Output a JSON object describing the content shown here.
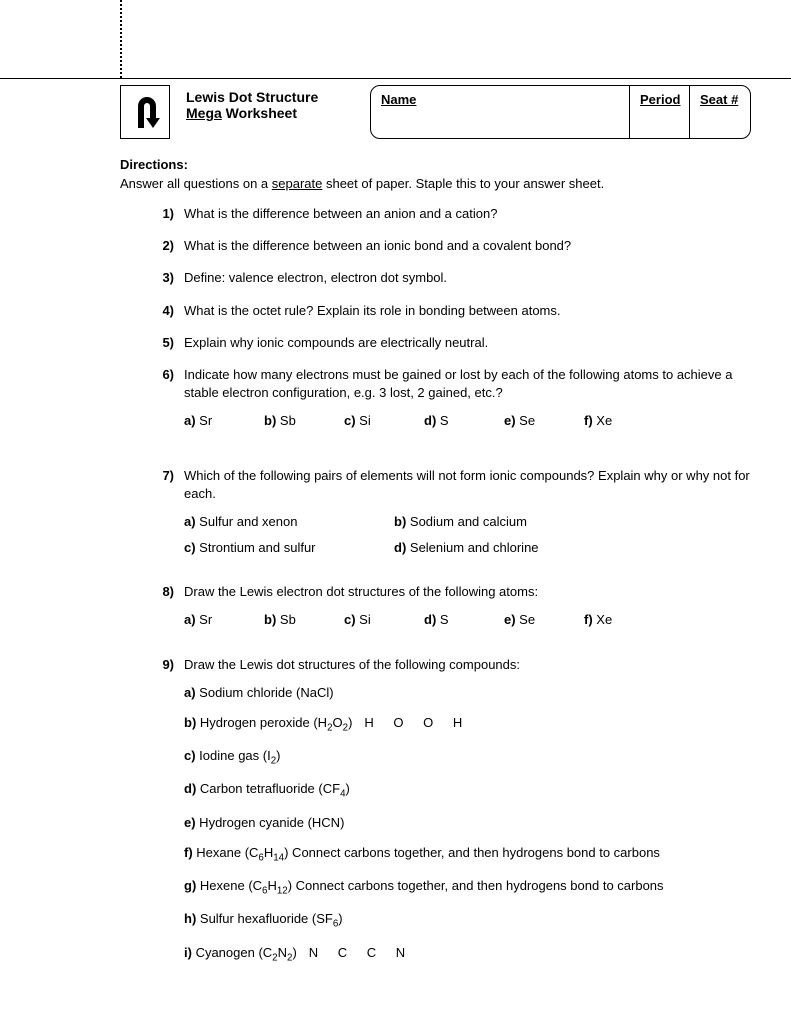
{
  "header": {
    "title_line1": "Lewis Dot Structure",
    "title_mega": "Mega",
    "title_line2_suffix": " Worksheet",
    "name_label": "Name",
    "period_label": "Period",
    "seat_label": "Seat #"
  },
  "directions": {
    "label": "Directions:",
    "text_before": "Answer all questions on a ",
    "text_underline": "separate",
    "text_after": " sheet of paper. Staple this to your answer sheet."
  },
  "questions": [
    {
      "n": "1)",
      "text": "What is the difference between an anion and a cation?"
    },
    {
      "n": "2)",
      "text": "What is the difference between an ionic bond and a covalent bond?"
    },
    {
      "n": "3)",
      "text": "Define: valence electron, electron dot symbol."
    },
    {
      "n": "4)",
      "text": "What is the octet rule? Explain its role in bonding between atoms."
    },
    {
      "n": "5)",
      "text": "Explain why ionic compounds are electrically neutral."
    },
    {
      "n": "6)",
      "text": "Indicate how many electrons must be gained or lost by each of the following atoms to achieve a stable electron configuration, e.g. 3 lost, 2 gained, etc.?",
      "subs_inline": [
        {
          "l": "a)",
          "t": " Sr"
        },
        {
          "l": "b)",
          "t": " Sb"
        },
        {
          "l": "c)",
          "t": " Si"
        },
        {
          "l": "d)",
          "t": " S"
        },
        {
          "l": "e)",
          "t": " Se"
        },
        {
          "l": "f)",
          "t": " Xe"
        }
      ]
    },
    {
      "n": "7)",
      "text": "Which of the following pairs of elements will not form ionic compounds? Explain why or why not for each.",
      "subs_grid": [
        {
          "l": "a)",
          "t": " Sulfur and xenon"
        },
        {
          "l": "b)",
          "t": " Sodium and calcium"
        },
        {
          "l": "c)",
          "t": " Strontium and sulfur"
        },
        {
          "l": "d)",
          "t": " Selenium and chlorine"
        }
      ]
    },
    {
      "n": "8)",
      "text": "Draw the Lewis electron dot structures of the following atoms:",
      "subs_inline": [
        {
          "l": "a)",
          "t": " Sr"
        },
        {
          "l": "b)",
          "t": " Sb"
        },
        {
          "l": "c)",
          "t": " Si"
        },
        {
          "l": "d)",
          "t": " S"
        },
        {
          "l": "e)",
          "t": " Se"
        },
        {
          "l": "f)",
          "t": " Xe"
        }
      ]
    },
    {
      "n": "9)",
      "text": "Draw the Lewis dot structures of the following compounds:",
      "subs_vert": [
        {
          "l": "a)",
          "t": " Sodium chloride (NaCl)"
        },
        {
          "l": "b)",
          "t": " Hydrogen peroxide (H",
          "sub": "2",
          "t2": "O",
          "sub2": "2",
          "t3": ")",
          "hint": "H   O   O   H"
        },
        {
          "l": "c)",
          "t": " Iodine gas (I",
          "sub": "2",
          "t2": ")"
        },
        {
          "l": "d)",
          "t": " Carbon tetrafluoride (CF",
          "sub": "4",
          "t2": ")"
        },
        {
          "l": "e)",
          "t": " Hydrogen cyanide (HCN)"
        },
        {
          "l": "f)",
          "t": " Hexane (C",
          "sub": "6",
          "t2": "H",
          "sub2": "14",
          "t3": ") Connect carbons together, and then hydrogens bond to carbons"
        },
        {
          "l": "g)",
          "t": " Hexene (C",
          "sub": "6",
          "t2": "H",
          "sub2": "12",
          "t3": ") Connect carbons together, and then hydrogens bond to carbons"
        },
        {
          "l": "h)",
          "t": " Sulfur hexafluoride (SF",
          "sub": "6",
          "t2": ")"
        },
        {
          "l": "i)",
          "t": " Cyanogen (C",
          "sub": "2",
          "t2": "N",
          "sub2": "2",
          "t3": ")",
          "hint": "N   C   C   N"
        }
      ]
    }
  ]
}
